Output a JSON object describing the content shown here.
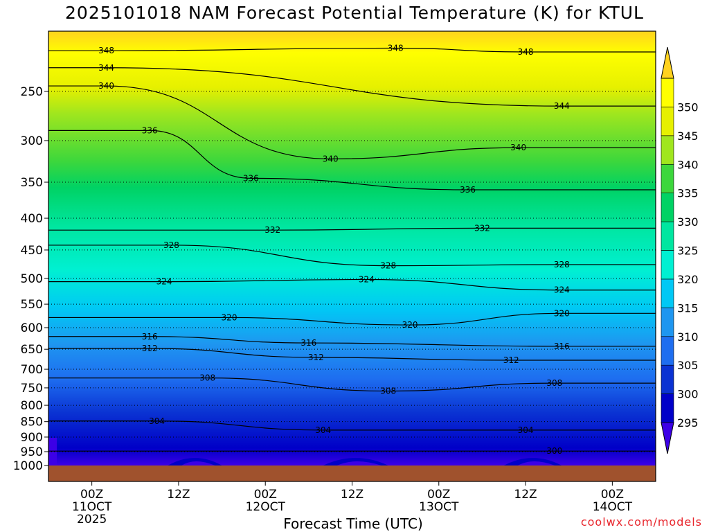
{
  "title": "2025101018 NAM Forecast Potential Temperature (K) for KTUL",
  "credit": "coolwx.com/models",
  "chart_data": {
    "type": "time-height contour",
    "title": "2025101018 NAM Forecast Potential Temperature (K) for KTUL",
    "xlabel": "Forecast Time (UTC)",
    "ylabel": "",
    "x_ticks": [
      {
        "hours": 6,
        "lines": [
          "00Z",
          "11OCT",
          "2025"
        ]
      },
      {
        "hours": 18,
        "lines": [
          "12Z"
        ]
      },
      {
        "hours": 30,
        "lines": [
          "00Z",
          "12OCT"
        ]
      },
      {
        "hours": 42,
        "lines": [
          "12Z"
        ]
      },
      {
        "hours": 54,
        "lines": [
          "00Z",
          "13OCT"
        ]
      },
      {
        "hours": 66,
        "lines": [
          "12Z"
        ]
      },
      {
        "hours": 78,
        "lines": [
          "00Z",
          "14OCT"
        ]
      }
    ],
    "xlim_hours": [
      0,
      84
    ],
    "y_ticks": [
      250,
      300,
      350,
      400,
      450,
      500,
      550,
      600,
      650,
      700,
      750,
      800,
      850,
      900,
      950,
      1000
    ],
    "ylim_hpa": [
      1000,
      200
    ],
    "grid": "dotted at pressure ticks",
    "colorbar": {
      "levels": [
        295,
        300,
        305,
        310,
        315,
        320,
        325,
        330,
        335,
        340,
        345,
        350
      ],
      "colors": [
        "#3c00e6",
        "#0000c8",
        "#0a32d2",
        "#1e6ef0",
        "#1e96f0",
        "#00c8f5",
        "#00f0d2",
        "#00e6a0",
        "#00d264",
        "#3cd73c",
        "#a0e61e",
        "#e6f000",
        "#ffff00",
        "#ffd21e"
      ]
    },
    "contour_labels": [
      {
        "value": "348",
        "hours": 8,
        "hpa": 215
      },
      {
        "value": "348",
        "hours": 48,
        "hpa": 213
      },
      {
        "value": "348",
        "hours": 66,
        "hpa": 216
      },
      {
        "value": "344",
        "hours": 8,
        "hpa": 229
      },
      {
        "value": "344",
        "hours": 71,
        "hpa": 264
      },
      {
        "value": "340",
        "hours": 8,
        "hpa": 245
      },
      {
        "value": "340",
        "hours": 39,
        "hpa": 321
      },
      {
        "value": "340",
        "hours": 65,
        "hpa": 308
      },
      {
        "value": "336",
        "hours": 14,
        "hpa": 289
      },
      {
        "value": "336",
        "hours": 28,
        "hpa": 345
      },
      {
        "value": "336",
        "hours": 58,
        "hpa": 360
      },
      {
        "value": "332",
        "hours": 31,
        "hpa": 418
      },
      {
        "value": "332",
        "hours": 60,
        "hpa": 415
      },
      {
        "value": "328",
        "hours": 17,
        "hpa": 442
      },
      {
        "value": "328",
        "hours": 47,
        "hpa": 477
      },
      {
        "value": "328",
        "hours": 71,
        "hpa": 475
      },
      {
        "value": "324",
        "hours": 16,
        "hpa": 506
      },
      {
        "value": "324",
        "hours": 44,
        "hpa": 502
      },
      {
        "value": "324",
        "hours": 71,
        "hpa": 522
      },
      {
        "value": "320",
        "hours": 25,
        "hpa": 578
      },
      {
        "value": "320",
        "hours": 50,
        "hpa": 594
      },
      {
        "value": "320",
        "hours": 71,
        "hpa": 569
      },
      {
        "value": "316",
        "hours": 14,
        "hpa": 620
      },
      {
        "value": "316",
        "hours": 36,
        "hpa": 635
      },
      {
        "value": "316",
        "hours": 71,
        "hpa": 643
      },
      {
        "value": "312",
        "hours": 14,
        "hpa": 648
      },
      {
        "value": "312",
        "hours": 37,
        "hpa": 670
      },
      {
        "value": "312",
        "hours": 64,
        "hpa": 677
      },
      {
        "value": "308",
        "hours": 22,
        "hpa": 723
      },
      {
        "value": "308",
        "hours": 47,
        "hpa": 759
      },
      {
        "value": "308",
        "hours": 70,
        "hpa": 737
      },
      {
        "value": "304",
        "hours": 15,
        "hpa": 848
      },
      {
        "value": "304",
        "hours": 38,
        "hpa": 877
      },
      {
        "value": "304",
        "hours": 66,
        "hpa": 877
      },
      {
        "value": "300",
        "hours": 70,
        "hpa": 948
      }
    ]
  }
}
